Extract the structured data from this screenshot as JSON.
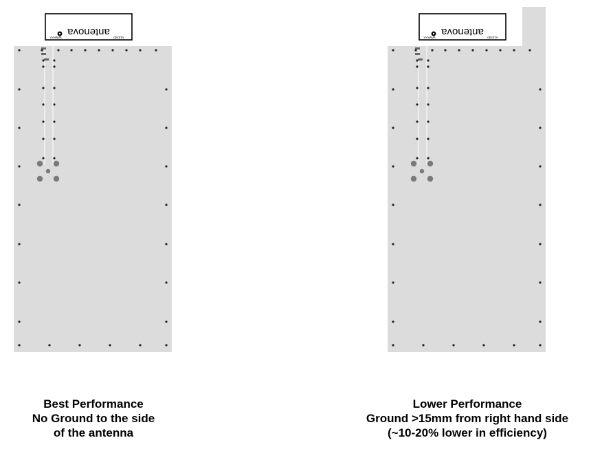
{
  "antenna_label": {
    "brand": "antenova",
    "top_left_mark": "WWAAA",
    "top_right_mark": "A10340"
  },
  "boards": [
    {
      "id": "best",
      "caption": [
        "Best Performance",
        "No Ground to the side",
        "of the antenna"
      ],
      "ground_clearance_right": false
    },
    {
      "id": "lower",
      "caption": [
        "Lower Performance",
        "Ground >15mm from right hand side",
        "(~10-20% lower in efficiency)"
      ],
      "ground_clearance_right": true
    }
  ],
  "colors": {
    "ground_plane": "#dcdcdc",
    "antenna_area": "#ffffff",
    "via": "#222222",
    "pad": "#7a7a7a"
  }
}
